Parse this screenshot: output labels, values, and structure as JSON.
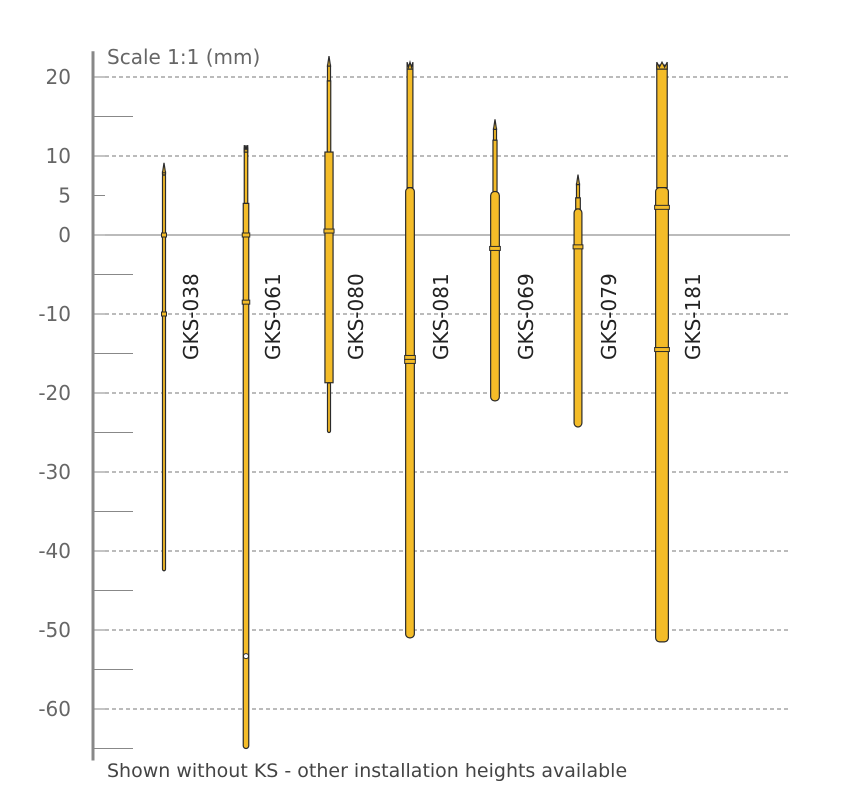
{
  "scale_label": "Scale 1:1 (mm)",
  "footnote": "Shown without KS - other installation heights available",
  "colors": {
    "pin_fill": "#F4BC28",
    "pin_stroke": "#2b2b2b",
    "axis": "#888888",
    "grid": "#777777",
    "zero_line": "#777777"
  },
  "chart_data": {
    "type": "diagram",
    "ylim": [
      -65,
      22
    ],
    "major_ticks": [
      20,
      10,
      5,
      0,
      -10,
      -20,
      -30,
      -40,
      -50,
      -60
    ],
    "tick_labels": [
      "20",
      "10",
      "5",
      "0",
      "-10",
      "-20",
      "-30",
      "-40",
      "-50",
      "-60"
    ],
    "minor_ticks": [
      15,
      -5,
      -15,
      -25,
      -35,
      -45,
      -55,
      -65
    ],
    "gridlines": [
      20,
      10,
      -10,
      -20,
      -30,
      -40,
      -50,
      -60
    ],
    "pins": [
      {
        "name": "GKS-038",
        "tip": "point",
        "segments": [
          {
            "top": 8,
            "bottom": 7.6,
            "width": 0.25
          },
          {
            "top": 7.6,
            "bottom": -42.5,
            "width": 0.5
          }
        ],
        "marks": [
          0,
          -10
        ]
      },
      {
        "name": "GKS-061",
        "tip": "crown",
        "segments": [
          {
            "top": 11,
            "bottom": 4,
            "width": 0.6
          },
          {
            "top": 4,
            "bottom": -8.5,
            "width": 0.95
          },
          {
            "top": -8.5,
            "bottom": -65,
            "width": 0.95
          }
        ],
        "marks": [
          0,
          -8.5
        ],
        "hole": -53.3
      },
      {
        "name": "GKS-080",
        "tip": "point",
        "segments": [
          {
            "top": 21.5,
            "bottom": 19.5,
            "width": 0.25
          },
          {
            "top": 19.5,
            "bottom": 10.5,
            "width": 0.6
          },
          {
            "top": 10.5,
            "bottom": -18.7,
            "width": 1.4
          },
          {
            "top": -18.7,
            "bottom": -25,
            "width": 0.5
          }
        ],
        "marks": [
          0.5
        ]
      },
      {
        "name": "GKS-081",
        "tip": "crown",
        "segments": [
          {
            "top": 21.5,
            "bottom": 6,
            "width": 1.0
          },
          {
            "top": 6,
            "bottom": -51,
            "width": 1.5
          }
        ],
        "marks": [
          -15.5,
          -16
        ]
      },
      {
        "name": "GKS-069",
        "tip": "point",
        "segments": [
          {
            "top": 13.5,
            "bottom": 12,
            "width": 0.25
          },
          {
            "top": 12,
            "bottom": 5.5,
            "width": 0.7
          },
          {
            "top": 5.5,
            "bottom": -21,
            "width": 1.5
          }
        ],
        "marks": [
          -1.7
        ]
      },
      {
        "name": "GKS-079",
        "tip": "point",
        "segments": [
          {
            "top": 6.5,
            "bottom": 4.7,
            "width": 0.25
          },
          {
            "top": 4.7,
            "bottom": 3.3,
            "width": 0.8
          },
          {
            "top": 3.3,
            "bottom": -24.3,
            "width": 1.35
          }
        ],
        "marks": [
          -1.5
        ]
      },
      {
        "name": "GKS-181",
        "tip": "crown",
        "segments": [
          {
            "top": 21.5,
            "bottom": 6,
            "width": 1.8
          },
          {
            "top": 6,
            "bottom": -51.5,
            "width": 2.2
          }
        ],
        "marks": [
          3.5,
          -14.5
        ]
      }
    ]
  }
}
